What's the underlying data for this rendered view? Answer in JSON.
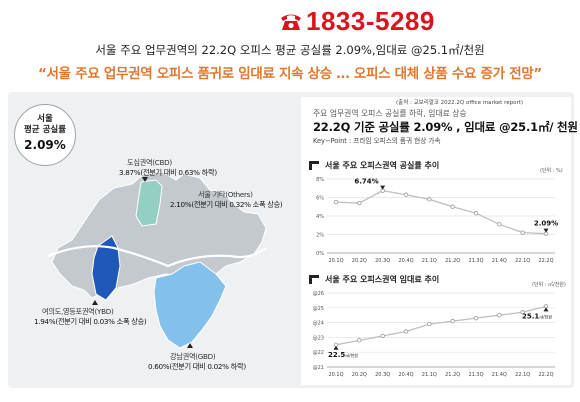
{
  "header": {
    "phone_icon": "telephone-icon",
    "phone_number": "1833-5289",
    "subtitle": "서울 주요 업무권역의 22.2Q 오피스 평균 공실률 2.09%,임대료 @25.1㎡/천원",
    "headline": "“서울 주요 업무권역 오피스 품귀로 임대료 지속 상승 … 오피스 대체 상품 수요 증가 전망”"
  },
  "badge": {
    "label_line1": "서울",
    "label_line2": "평균 공실률",
    "value": "2.09%"
  },
  "map": {
    "regions": [
      {
        "key": "cbd",
        "name": "도심권역(CBD)",
        "stat": "3.87%(전분기 대비 0.63% 하락)",
        "color": "#94cfc4"
      },
      {
        "key": "others",
        "name": "서울 기타(Others)",
        "stat": "2.10%(전분기 대비 0.32% 소폭 상승)",
        "color": "#c4c9cd"
      },
      {
        "key": "ybd",
        "name": "여의도,영등포권역(YBD)",
        "stat": "1.94%(전분기 대비 0.03% 소폭 상승)",
        "color": "#1f58b8"
      },
      {
        "key": "gbd",
        "name": "강남권역(GBD)",
        "stat": "0.60%(전분기 대비 0.02% 하락)",
        "color": "#83c1ec"
      }
    ],
    "outline_color": "#ffffff",
    "river_color": "#ffffff"
  },
  "summary": {
    "source": "(출처 : 교보리얼코 2022.2Q office market report)",
    "sub": "주요 업무권역 오피스 공실률 하락, 임대료 상승",
    "main": "22.2Q 기준 공실률 2.09% , 임대료 @25.1㎡/ 천원",
    "keypoint": "Key−Point : 프라임 오피스의 품귀 현상 가속"
  },
  "charts": {
    "vacancy": {
      "title": "서울 주요 오피스권역 공실률 추이",
      "unit": "(단위 : %)",
      "accent": "#222222"
    },
    "rent": {
      "title": "서울 주요 오피스권역 임대료 추이",
      "unit": "(단위 : ㎡/천원)",
      "accent": "#222222"
    }
  },
  "chart_data": [
    {
      "type": "line",
      "categories": [
        "20.1Q",
        "20.2Q",
        "20.3Q",
        "20.4Q",
        "21.1Q",
        "21.2Q",
        "21.3Q",
        "21.4Q",
        "22.1Q",
        "22.2Q"
      ],
      "series": [
        {
          "values": [
            5.5,
            5.4,
            6.74,
            6.3,
            5.8,
            5.0,
            4.3,
            3.1,
            2.2,
            2.09
          ]
        }
      ],
      "ylim": [
        0,
        8
      ],
      "yticks": [
        "0%",
        "2%",
        "4%",
        "6%",
        "8%"
      ],
      "labels": [
        {
          "index": 2,
          "text": "6.74%"
        },
        {
          "index": 9,
          "text": "2.09%"
        }
      ],
      "title": "서울 주요 오피스권역 공실률 추이",
      "grid": true
    },
    {
      "type": "line",
      "categories": [
        "20.1Q",
        "20.2Q",
        "20.3Q",
        "20.4Q",
        "21.1Q",
        "21.2Q",
        "21.3Q",
        "21.4Q",
        "22.1Q",
        "22.2Q"
      ],
      "series": [
        {
          "values": [
            22.5,
            22.8,
            23.1,
            23.4,
            23.9,
            24.1,
            24.3,
            24.5,
            24.7,
            25.1
          ]
        }
      ],
      "ylim": [
        21,
        26
      ],
      "yticks": [
        "@21",
        "@22",
        "@23",
        "@24",
        "@25",
        "@26"
      ],
      "labels": [
        {
          "index": 0,
          "text": "22.5",
          "unit": "㎡/천원"
        },
        {
          "index": 9,
          "text": "25.1",
          "unit": "㎡/천원"
        }
      ],
      "title": "서울 주요 오피스권역 임대료 추이",
      "grid": true
    }
  ]
}
